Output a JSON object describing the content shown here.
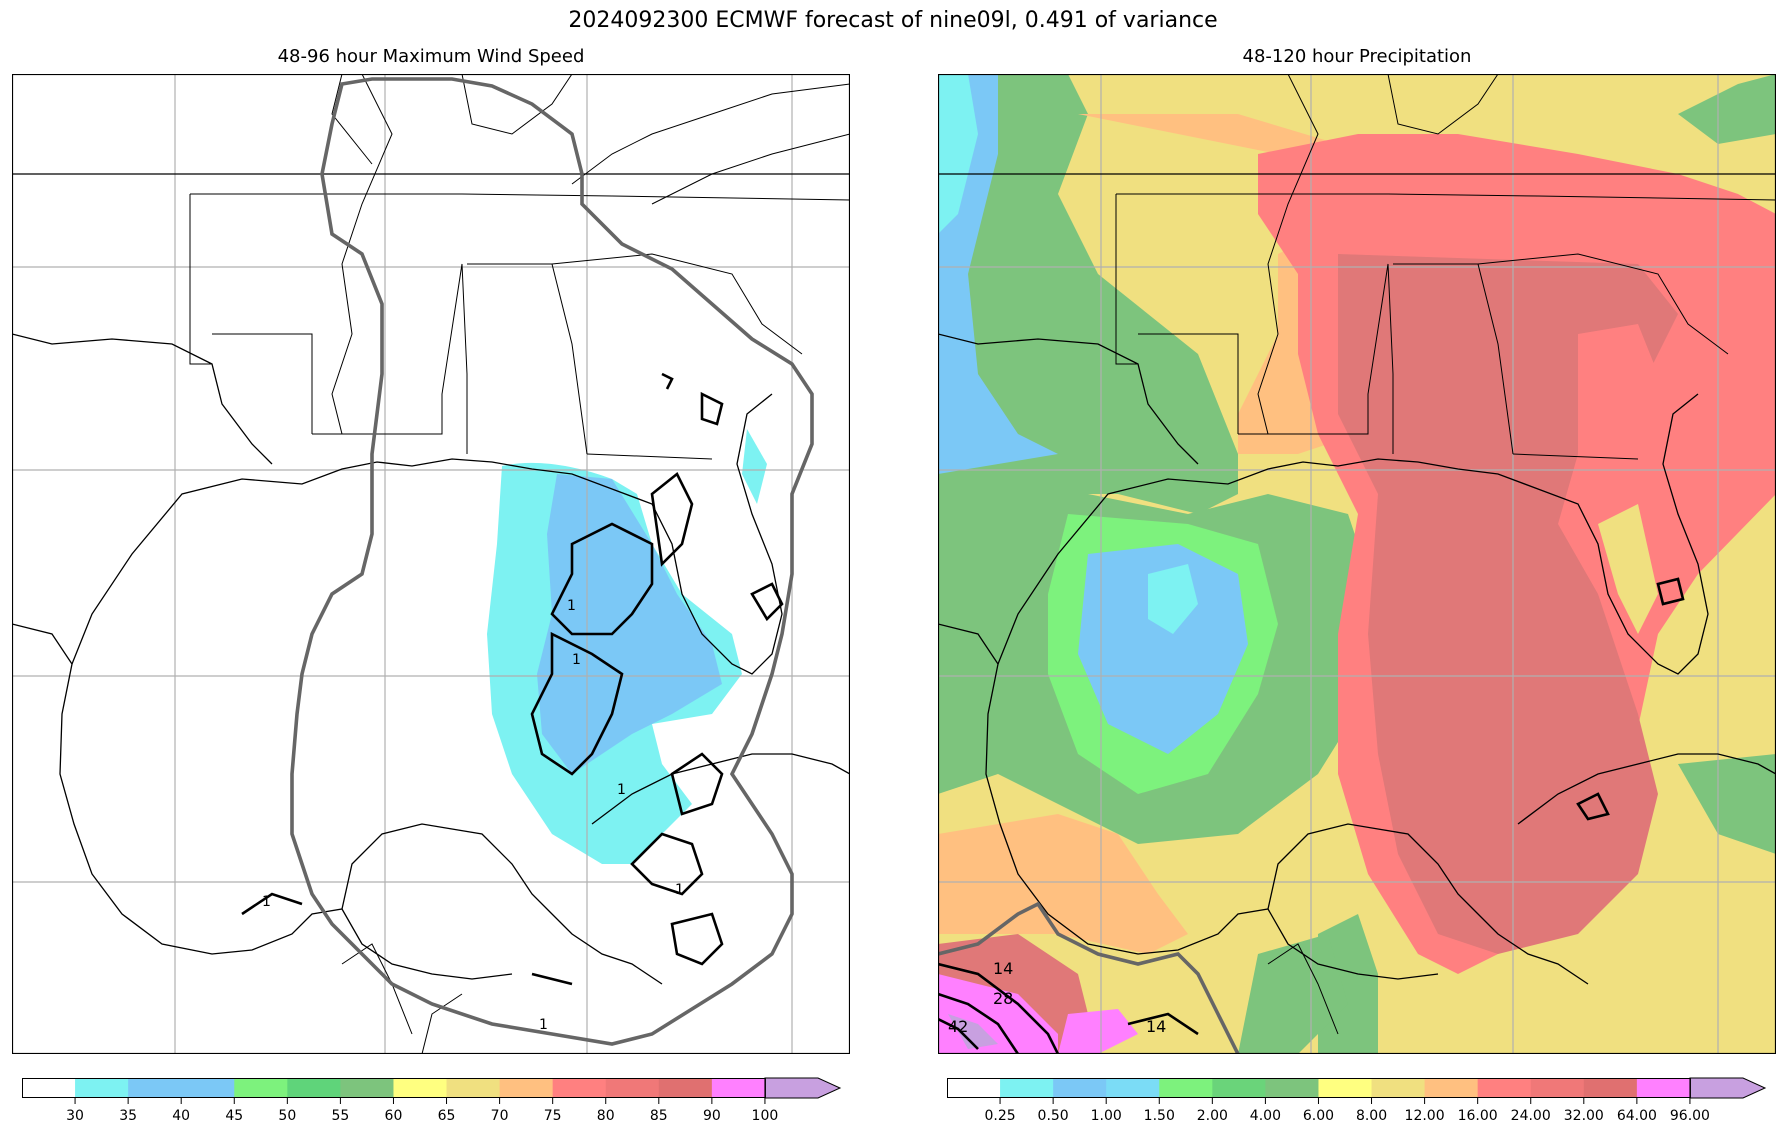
{
  "figure": {
    "title": "2024092300 ECMWF forecast of nine09l, 0.491 of variance"
  },
  "panels": {
    "left": {
      "title": "48-96 hour Maximum Wind Speed",
      "colorbar": {
        "ticks": [
          "30",
          "35",
          "40",
          "45",
          "50",
          "55",
          "60",
          "65",
          "70",
          "75",
          "80",
          "85",
          "90",
          "100"
        ],
        "colors": [
          "#ffffff",
          "#7df2f2",
          "#7bc8f6",
          "#7bc8f6",
          "#7df27d",
          "#5fd47a",
          "#7dc47d",
          "#ffff80",
          "#f0e080",
          "#ffc080",
          "#ff8080",
          "#f07878",
          "#e07070",
          "#ff80ff",
          "#c8a0e0"
        ],
        "extend": "max"
      },
      "contour_labels": [
        "1",
        "1",
        "1",
        "1",
        "1",
        "1"
      ]
    },
    "right": {
      "title": "48-120 hour Precipitation",
      "colorbar": {
        "ticks": [
          "0.25",
          "0.50",
          "1.00",
          "1.50",
          "2.00",
          "4.00",
          "6.00",
          "8.00",
          "12.00",
          "16.00",
          "24.00",
          "32.00",
          "64.00",
          "96.00"
        ],
        "colors": [
          "#ffffff",
          "#7df2f2",
          "#7bc8f6",
          "#7bdcf6",
          "#7df27d",
          "#6ad47a",
          "#7dc47d",
          "#ffff80",
          "#f0e080",
          "#ffc080",
          "#ff8080",
          "#f07878",
          "#e07070",
          "#ff80ff",
          "#c8a0e0"
        ],
        "extend": "max"
      },
      "contour_labels": [
        "14",
        "28",
        "42",
        "14"
      ]
    }
  }
}
